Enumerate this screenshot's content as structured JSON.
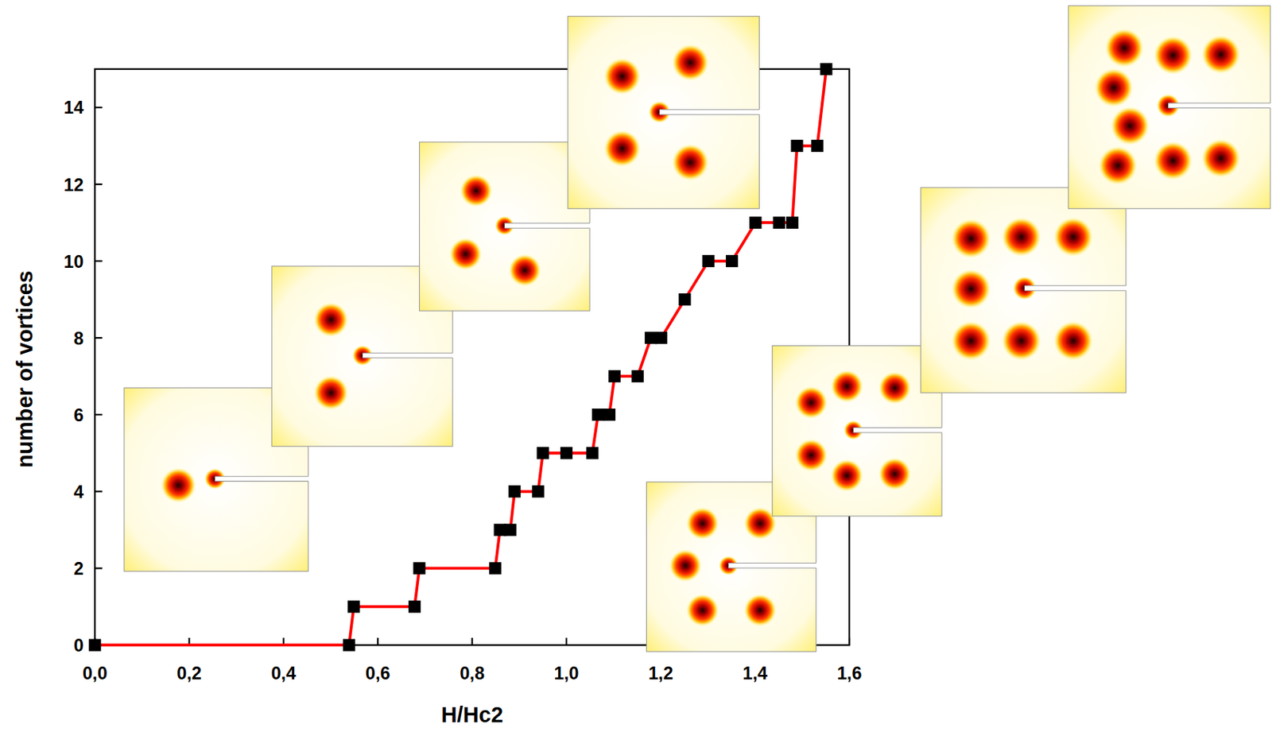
{
  "chart_data": {
    "type": "line",
    "xlabel": "H/Hc2",
    "ylabel": "number of vortices",
    "x": [
      0,
      0.539,
      0.549,
      0.678,
      0.688,
      0.849,
      0.859,
      0.881,
      0.89,
      0.94,
      0.95,
      1.0,
      1.055,
      1.067,
      1.091,
      1.102,
      1.151,
      1.179,
      1.201,
      1.251,
      1.301,
      1.351,
      1.401,
      1.451,
      1.479,
      1.489,
      1.532,
      1.551
    ],
    "series": [
      {
        "color": "#ff0000",
        "marker": "square",
        "line_style": "solid",
        "values": [
          0,
          0,
          1,
          1,
          2,
          2,
          3,
          3,
          4,
          4,
          5,
          5,
          5,
          6,
          6,
          7,
          7,
          8,
          8,
          9,
          10,
          10,
          11,
          11,
          11,
          13,
          13,
          15
        ]
      }
    ],
    "xlim": [
      0,
      1.6
    ],
    "ylim": [
      0,
      15
    ],
    "xticks": [
      {
        "value": 0,
        "label": "0,0"
      },
      {
        "value": 0.2,
        "label": "0,2"
      },
      {
        "value": 0.4,
        "label": "0,4"
      },
      {
        "value": 0.6,
        "label": "0,6"
      },
      {
        "value": 0.8,
        "label": "0,8"
      },
      {
        "value": 1.0,
        "label": "1,0"
      },
      {
        "value": 1.2,
        "label": "1,2"
      },
      {
        "value": 1.4,
        "label": "1,4"
      },
      {
        "value": 1.6,
        "label": "1,6"
      }
    ],
    "yticks": [
      0,
      2,
      4,
      6,
      8,
      10,
      12,
      14
    ],
    "grid": false
  }
}
